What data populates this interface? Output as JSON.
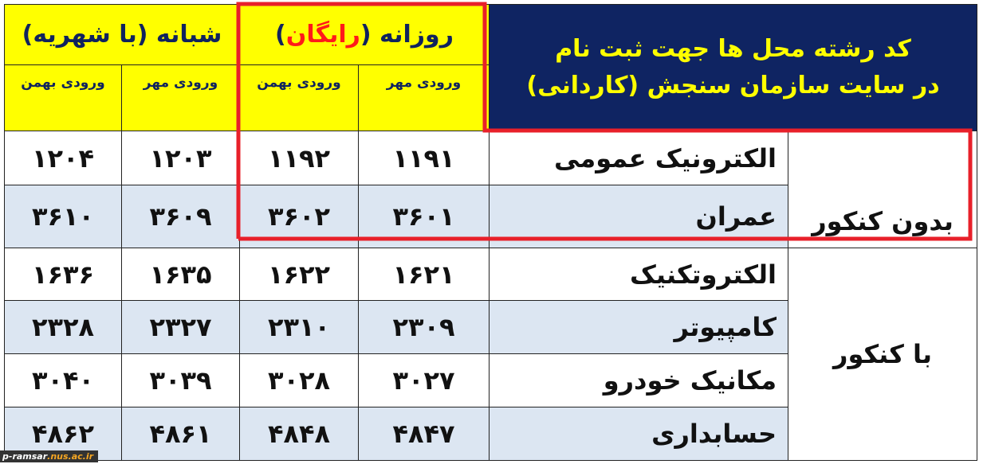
{
  "title": {
    "line1": "کد رشته محل ها جهت ثبت نام",
    "line2": "در سایت سازمان سنجش (کاردانی)"
  },
  "headers": {
    "day": {
      "prefix": "روزانه (",
      "free": "رایگان",
      "suffix": ")"
    },
    "night": "شبانه (با شهریه)",
    "mehr": "ورودی مهر",
    "bahman": "ورودی بهمن"
  },
  "groups": [
    "بدون کنکور",
    "با کنکور"
  ],
  "rows": [
    {
      "field": "الکترونیک عمومی",
      "day_mehr": "۱۱۹۱",
      "day_bahman": "۱۱۹۲",
      "night_mehr": "۱۲۰۳",
      "night_bahman": "۱۲۰۴"
    },
    {
      "field": "عمران",
      "day_mehr": "۳۶۰۱",
      "day_bahman": "۳۶۰۲",
      "night_mehr": "۳۶۰۹",
      "night_bahman": "۳۶۱۰"
    },
    {
      "field": "الکتروتکنیک",
      "day_mehr": "۱۶۲۱",
      "day_bahman": "۱۶۲۲",
      "night_mehr": "۱۶۳۵",
      "night_bahman": "۱۶۳۶"
    },
    {
      "field": "کامپیوتر",
      "day_mehr": "۲۳۰۹",
      "day_bahman": "۲۳۱۰",
      "night_mehr": "۲۳۲۷",
      "night_bahman": "۲۳۲۸"
    },
    {
      "field": "مکانیک خودرو",
      "day_mehr": "۳۰۲۷",
      "day_bahman": "۳۰۲۸",
      "night_mehr": "۳۰۳۹",
      "night_bahman": "۳۰۴۰"
    },
    {
      "field": "حسابداری",
      "day_mehr": "۴۸۴۷",
      "day_bahman": "۴۸۴۸",
      "night_mehr": "۴۸۶۱",
      "night_bahman": "۴۸۶۲"
    }
  ],
  "watermark": {
    "part1": "p-ramsar",
    "part2": ".nus.ac.ir"
  },
  "colors": {
    "header_blue": "#0f2462",
    "header_yellow": "#ffff00",
    "highlight_red": "#e8202a",
    "alt_row": "#dce6f2"
  }
}
